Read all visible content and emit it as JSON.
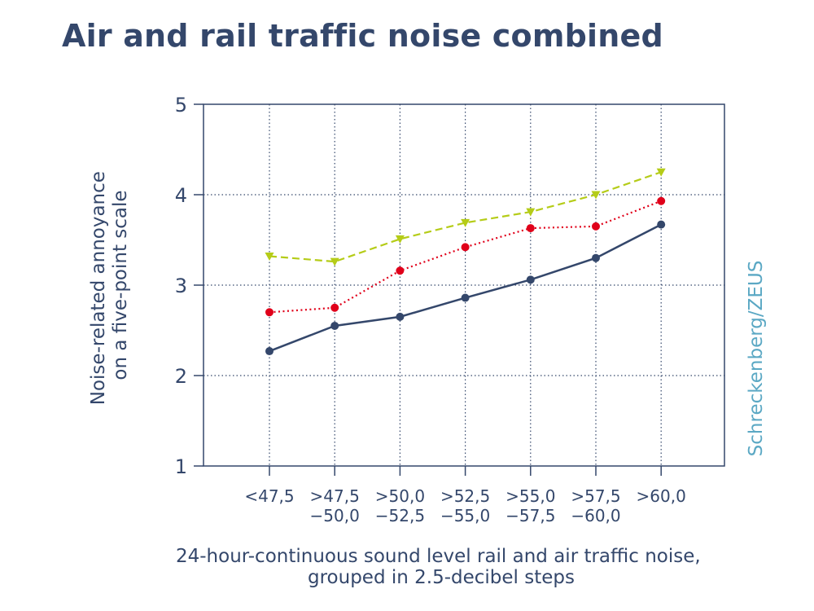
{
  "title": "Air and rail traffic noise combined",
  "credit": "Schreckenberg/ZEUS",
  "colors": {
    "text": "#34476b",
    "grid": "#34476b",
    "credit": "#5ba8c4",
    "series": [
      "#34476b",
      "#e0001a",
      "#b5cc18"
    ]
  },
  "chart_data": {
    "type": "line",
    "title": "Air and rail traffic noise combined",
    "ylabel_lines": [
      "Noise-related annoyance",
      "on a five-point scale"
    ],
    "xlabel_lines": [
      "24-hour-continuous sound level rail and air traffic noise,",
      "grouped in 2.5-decibel steps"
    ],
    "categories": [
      [
        "<47,5"
      ],
      [
        ">47,5",
        "−50,0"
      ],
      [
        ">50,0",
        "−52,5"
      ],
      [
        ">52,5",
        "−55,0"
      ],
      [
        ">55,0",
        "−57,5"
      ],
      [
        ">57,5",
        "−60,0"
      ],
      [
        ">60,0"
      ]
    ],
    "ylim": [
      1,
      5
    ],
    "yticks": [
      1,
      2,
      3,
      4,
      5
    ],
    "grid": "dotted",
    "series": [
      {
        "values": [
          2.27,
          2.55,
          2.65,
          2.86,
          3.06,
          3.3,
          3.67
        ],
        "marker": "circle",
        "line": "solid",
        "color": "#34476b"
      },
      {
        "values": [
          2.7,
          2.75,
          3.16,
          3.42,
          3.63,
          3.65,
          3.93
        ],
        "marker": "circle",
        "line": "dotted",
        "color": "#e0001a"
      },
      {
        "values": [
          3.32,
          3.26,
          3.51,
          3.69,
          3.81,
          4.0,
          4.25
        ],
        "marker": "triangle-down",
        "line": "dashed",
        "color": "#b5cc18"
      }
    ]
  }
}
